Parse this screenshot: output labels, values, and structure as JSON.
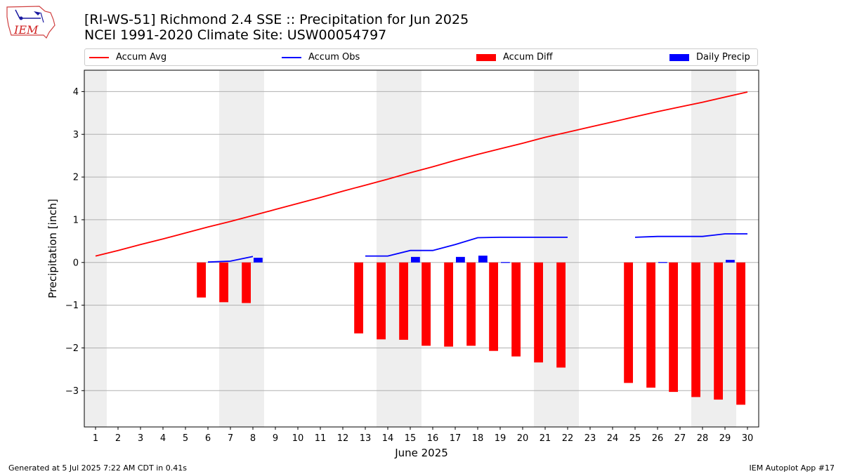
{
  "header": {
    "logo_text": "IEM",
    "title_line1": "[RI-WS-51] Richmond 2.4 SSE :: Precipitation for Jun 2025",
    "title_line2": "NCEI 1991-2020 Climate Site: USW00054797"
  },
  "legend": {
    "items": [
      {
        "label": "Accum Avg",
        "kind": "line",
        "color": "#ff0000"
      },
      {
        "label": "Accum Obs",
        "kind": "line",
        "color": "#0000ff"
      },
      {
        "label": "Accum Diff",
        "kind": "bar",
        "color": "#ff0000"
      },
      {
        "label": "Daily Precip",
        "kind": "bar",
        "color": "#0000ff"
      }
    ]
  },
  "footer": {
    "left": "Generated at 5 Jul 2025 7:22 AM CDT in 0.41s",
    "right": "IEM Autoplot App #17"
  },
  "chart_data": {
    "type": "bar",
    "title": "[RI-WS-51] Richmond 2.4 SSE :: Precipitation for Jun 2025",
    "subtitle": "NCEI 1991-2020 Climate Site: USW00054797",
    "xlabel": "June 2025",
    "ylabel": "Precipitation [inch]",
    "x": [
      1,
      2,
      3,
      4,
      5,
      6,
      7,
      8,
      9,
      10,
      11,
      12,
      13,
      14,
      15,
      16,
      17,
      18,
      19,
      20,
      21,
      22,
      23,
      24,
      25,
      26,
      27,
      28,
      29,
      30
    ],
    "xlim": [
      0.5,
      30.5
    ],
    "ylim": [
      -3.85,
      4.5
    ],
    "yticks": [
      -3,
      -2,
      -1,
      0,
      1,
      2,
      3,
      4
    ],
    "ytick_labels": [
      "−3",
      "−2",
      "−1",
      "0",
      "1",
      "2",
      "3",
      "4"
    ],
    "grid": "horizontal",
    "legend_position": "top",
    "weekend_shading": [
      [
        0.5,
        1.5
      ],
      [
        6.5,
        8.5
      ],
      [
        13.5,
        15.5
      ],
      [
        20.5,
        22.5
      ],
      [
        27.5,
        29.5
      ]
    ],
    "shading_color": "#eeeeee",
    "series": [
      {
        "name": "Accum Avg",
        "kind": "line",
        "color": "#ff0000",
        "values": [
          0.15,
          0.28,
          0.42,
          0.55,
          0.69,
          0.83,
          0.96,
          1.1,
          1.24,
          1.38,
          1.52,
          1.67,
          1.81,
          1.95,
          2.1,
          2.24,
          2.39,
          2.53,
          2.66,
          2.79,
          2.93,
          3.05,
          3.17,
          3.29,
          3.41,
          3.53,
          3.64,
          3.75,
          3.87,
          3.99
        ]
      },
      {
        "name": "Accum Obs",
        "kind": "line",
        "color": "#0000ff",
        "values": [
          null,
          null,
          null,
          null,
          null,
          0.01,
          0.03,
          0.14,
          null,
          null,
          null,
          null,
          0.15,
          0.15,
          0.28,
          0.28,
          0.42,
          0.58,
          0.59,
          0.59,
          0.59,
          0.59,
          null,
          null,
          0.59,
          0.61,
          0.61,
          0.61,
          0.67,
          0.67
        ]
      },
      {
        "name": "Accum Diff",
        "kind": "bar",
        "color": "#ff0000",
        "values": [
          null,
          null,
          null,
          null,
          null,
          -0.82,
          -0.93,
          -0.95,
          null,
          null,
          null,
          null,
          -1.66,
          -1.8,
          -1.81,
          -1.95,
          -1.97,
          -1.95,
          -2.07,
          -2.2,
          -2.34,
          -2.46,
          null,
          null,
          -2.82,
          -2.93,
          -3.03,
          -3.15,
          -3.21,
          -3.33
        ]
      },
      {
        "name": "Daily Precip",
        "kind": "bar",
        "color": "#0000ff",
        "values": [
          null,
          null,
          null,
          null,
          null,
          0.0,
          0.0,
          0.11,
          null,
          null,
          null,
          null,
          0.0,
          0.0,
          0.13,
          0.0,
          0.13,
          0.16,
          0.01,
          0.0,
          0.0,
          0.0,
          null,
          null,
          0.0,
          0.01,
          0.0,
          0.0,
          0.06,
          0.0
        ]
      }
    ]
  }
}
